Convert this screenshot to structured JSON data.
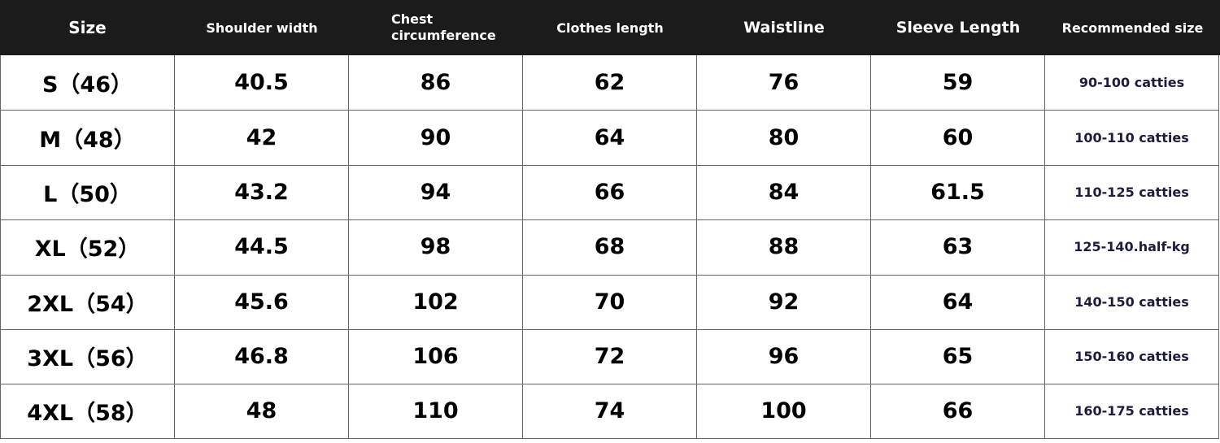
{
  "table": {
    "header": [
      "Size",
      "Shoulder width",
      "Chest circumference",
      "Clothes length",
      "Waistline",
      "Sleeve Length",
      "Recommended size"
    ],
    "rows": [
      [
        "S（46）",
        "40.5",
        "86",
        "62",
        "76",
        "59",
        "90-100 catties"
      ],
      [
        "M（48）",
        "42",
        "90",
        "64",
        "80",
        "60",
        "100-110 catties"
      ],
      [
        "L（50）",
        "43.2",
        "94",
        "66",
        "84",
        "61.5",
        "110-125 catties"
      ],
      [
        "XL（52）",
        "44.5",
        "98",
        "68",
        "88",
        "63",
        "125-140.half-kg"
      ],
      [
        "2XL（54）",
        "45.6",
        "102",
        "70",
        "92",
        "64",
        "140-150 catties"
      ],
      [
        "3XL（56）",
        "46.8",
        "106",
        "72",
        "96",
        "65",
        "150-160 catties"
      ],
      [
        "4XL（58）",
        "48",
        "110",
        "74",
        "100",
        "66",
        "160-175 catties"
      ]
    ]
  }
}
